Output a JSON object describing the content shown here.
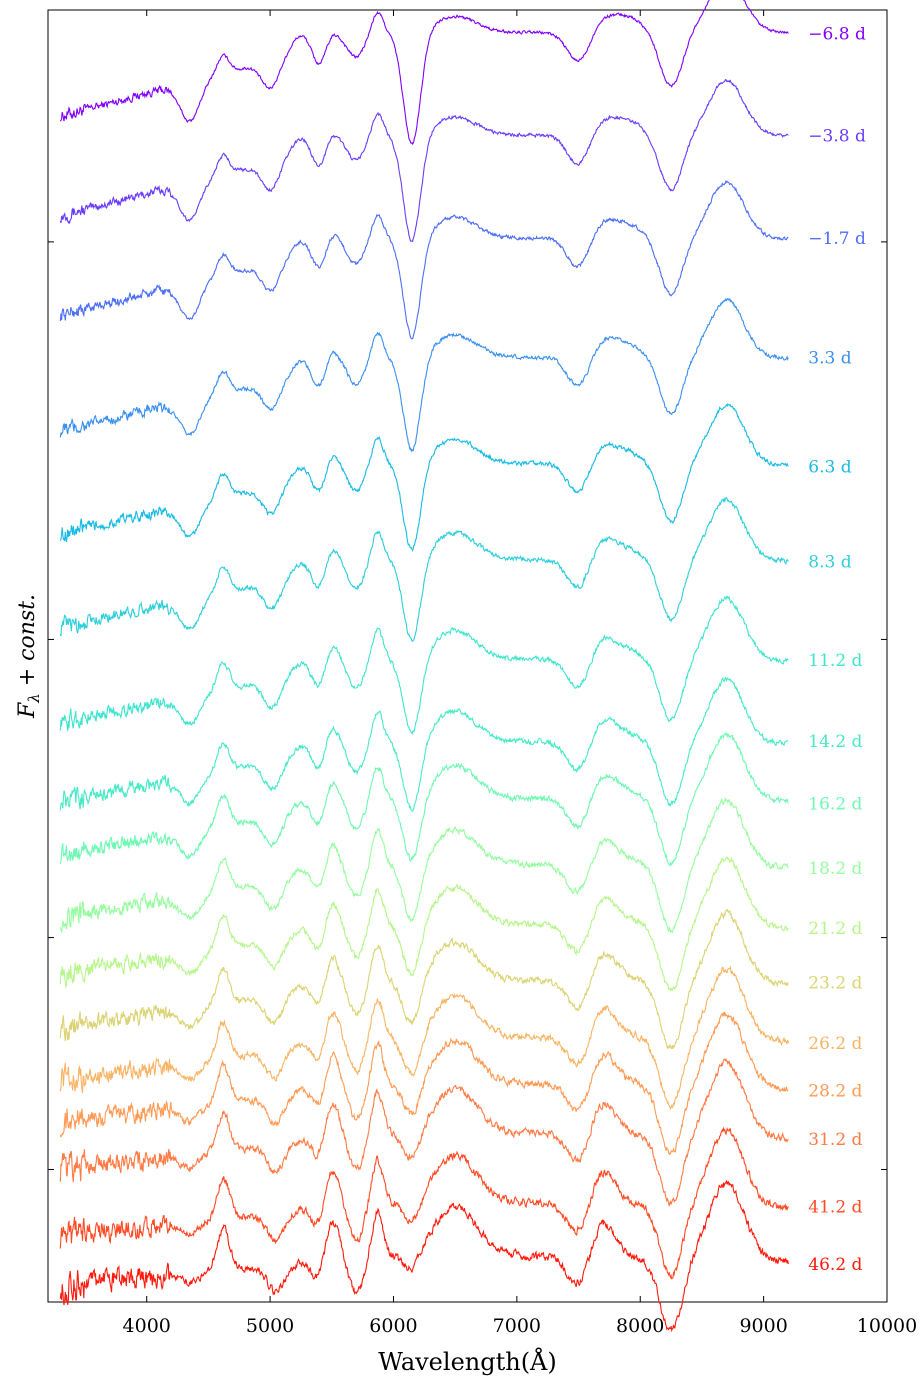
{
  "chart_data": {
    "type": "line",
    "title": "",
    "xlabel": "Wavelength(Å)",
    "ylabel": "F_λ + const.",
    "xlim": [
      3200,
      10000
    ],
    "x_ticks": [
      4000,
      5000,
      6000,
      7000,
      8000,
      9000,
      10000
    ],
    "y_ticks_labeled": false,
    "grid": false,
    "legend": "none (labels at right end of each spectrum)",
    "x_range_spectra": [
      3300,
      9200
    ],
    "series": [
      {
        "name": "−6.8 d",
        "color": "#8000ff",
        "offset": 17.9
      },
      {
        "name": "−3.8 d",
        "color": "#6a3cfd",
        "offset": 16.4
      },
      {
        "name": "−1.7 d",
        "color": "#4d6ef6",
        "offset": 14.9
      },
      {
        "name": "3.3 d",
        "color": "#3a8ff0",
        "offset": 13.15
      },
      {
        "name": "6.3 d",
        "color": "#18bbe4",
        "offset": 11.6
      },
      {
        "name": "8.3 d",
        "color": "#2ccfd9",
        "offset": 10.2
      },
      {
        "name": "11.2 d",
        "color": "#40e4cd",
        "offset": 8.75
      },
      {
        "name": "14.2 d",
        "color": "#48e9c6",
        "offset": 7.55
      },
      {
        "name": "16.2 d",
        "color": "#6ff8b3",
        "offset": 6.75
      },
      {
        "name": "18.2 d",
        "color": "#96fd9e",
        "offset": 5.8
      },
      {
        "name": "21.2 d",
        "color": "#b6f68b",
        "offset": 4.95
      },
      {
        "name": "23.2 d",
        "color": "#dbd374",
        "offset": 4.15
      },
      {
        "name": "26.2 d",
        "color": "#f8b464",
        "offset": 3.35
      },
      {
        "name": "28.2 d",
        "color": "#ff9a54",
        "offset": 2.7
      },
      {
        "name": "31.2 d",
        "color": "#ff7a44",
        "offset": 2.0
      },
      {
        "name": "41.2 d",
        "color": "#ff4a24",
        "offset": 1.0
      },
      {
        "name": "46.2 d",
        "color": "#ff1a0c",
        "offset": 0.25
      }
    ]
  }
}
